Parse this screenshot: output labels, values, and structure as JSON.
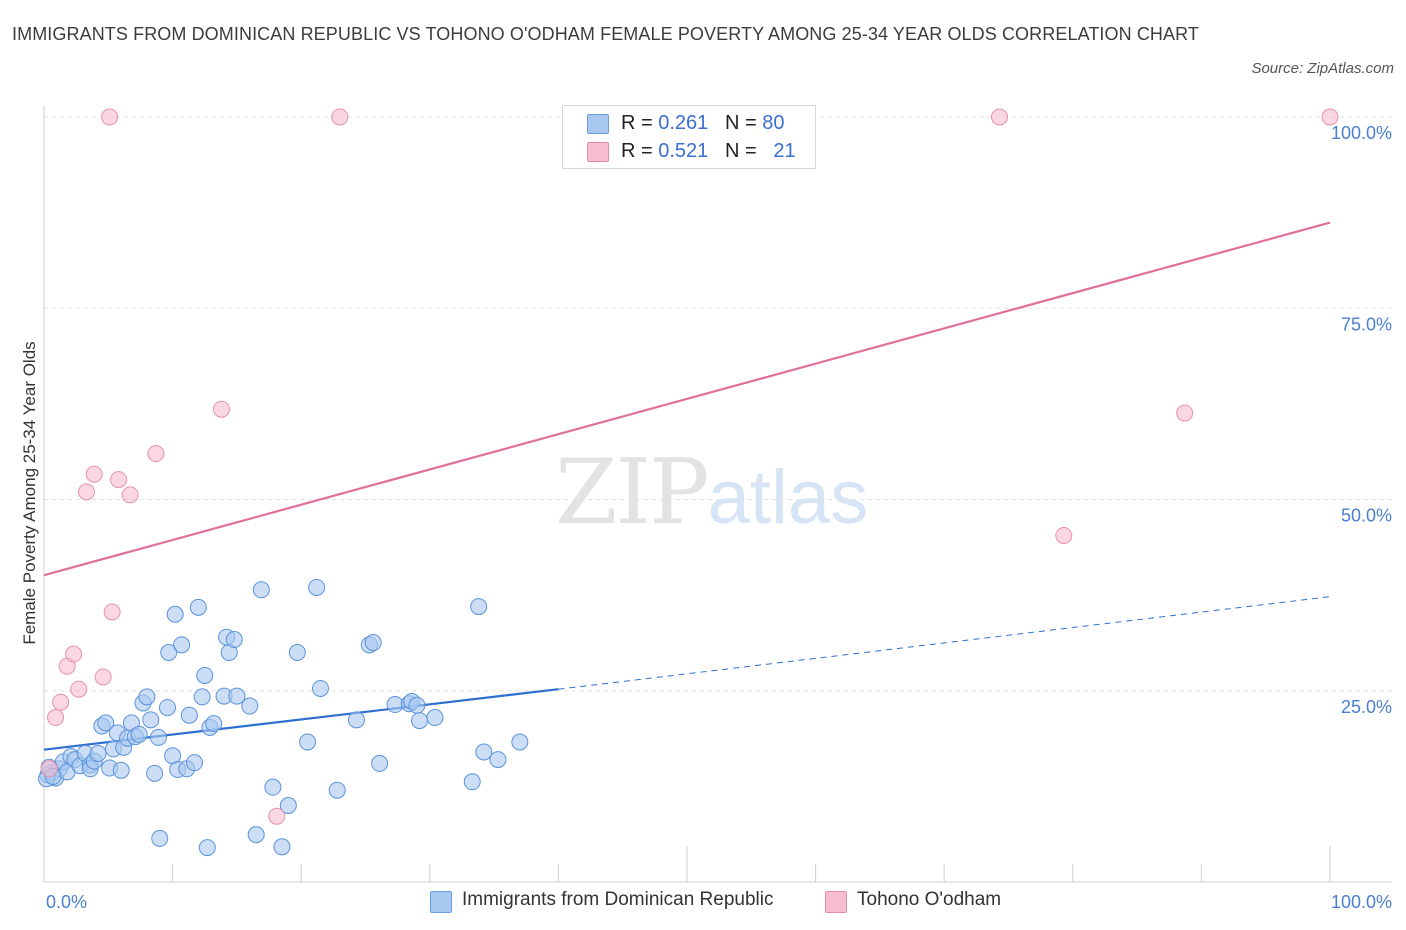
{
  "title": "IMMIGRANTS FROM DOMINICAN REPUBLIC VS TOHONO O'ODHAM FEMALE POVERTY AMONG 25-34 YEAR OLDS CORRELATION CHART",
  "source": "Source: ZipAtlas.com",
  "watermark": {
    "zip": "ZIP",
    "atlas": "atlas"
  },
  "legend": {
    "rows": [
      {
        "r_label": "R = ",
        "r_value": "0.261",
        "n_label": "N = ",
        "n_value": "80",
        "color": "#a8c8f0",
        "border": "#6a9ee0"
      },
      {
        "r_label": "R = ",
        "r_value": "0.521",
        "n_label": "N = ",
        "n_value": "21",
        "color": "#f6bcd0",
        "border": "#e88aa8"
      }
    ]
  },
  "bottom_legend": [
    {
      "label": "Immigrants from Dominican Republic",
      "color": "#a8c8f0",
      "border": "#6a9ee0"
    },
    {
      "label": "Tohono O'odham",
      "color": "#f6bcd0",
      "border": "#e88aa8"
    }
  ],
  "chart_data": {
    "type": "scatter",
    "title": "IMMIGRANTS FROM DOMINICAN REPUBLIC VS TOHONO O'ODHAM FEMALE POVERTY AMONG 25-34 YEAR OLDS CORRELATION CHART",
    "xlabel": "",
    "ylabel": "Female Poverty Among 25-34 Year Olds",
    "xlim": [
      0,
      100
    ],
    "ylim": [
      0,
      100
    ],
    "x_tick_labels": [
      "0.0%",
      "100.0%"
    ],
    "y_tick_labels": [
      "25.0%",
      "50.0%",
      "75.0%",
      "100.0%"
    ],
    "y_ticks": [
      25,
      50,
      75,
      100
    ],
    "grid": true,
    "series": [
      {
        "name": "Immigrants from Dominican Republic",
        "color": "#a8c8f0",
        "stroke": "#5b93dc",
        "trend_color": "#2f6fd0",
        "trend": {
          "x0": 0,
          "y0": 17.3,
          "x1": 40,
          "y1": 25.2,
          "dashed_to_x": 100,
          "dashed_to_y": 37.3
        },
        "points": [
          [
            0.3,
            14.0
          ],
          [
            0.6,
            14.3
          ],
          [
            0.9,
            13.6
          ],
          [
            1.2,
            14.8
          ],
          [
            1.5,
            15.7
          ],
          [
            1.8,
            14.4
          ],
          [
            2.1,
            16.4
          ],
          [
            2.4,
            16.0
          ],
          [
            2.8,
            15.2
          ],
          [
            3.2,
            16.8
          ],
          [
            3.6,
            15.3
          ],
          [
            3.6,
            14.8
          ],
          [
            3.9,
            15.8
          ],
          [
            4.2,
            16.8
          ],
          [
            4.5,
            20.4
          ],
          [
            4.8,
            20.8
          ],
          [
            5.1,
            14.9
          ],
          [
            5.4,
            17.4
          ],
          [
            5.7,
            19.5
          ],
          [
            6.0,
            14.6
          ],
          [
            6.2,
            17.6
          ],
          [
            6.5,
            18.8
          ],
          [
            6.8,
            20.8
          ],
          [
            7.1,
            19.0
          ],
          [
            7.4,
            19.3
          ],
          [
            7.7,
            23.4
          ],
          [
            8.0,
            24.2
          ],
          [
            8.3,
            21.2
          ],
          [
            8.6,
            14.2
          ],
          [
            8.9,
            18.9
          ],
          [
            9.0,
            5.7
          ],
          [
            9.6,
            22.8
          ],
          [
            9.7,
            30.0
          ],
          [
            10.0,
            16.5
          ],
          [
            10.2,
            35.0
          ],
          [
            10.4,
            14.7
          ],
          [
            10.7,
            31.0
          ],
          [
            11.1,
            14.8
          ],
          [
            11.3,
            21.8
          ],
          [
            11.7,
            15.6
          ],
          [
            12.0,
            35.9
          ],
          [
            12.3,
            24.2
          ],
          [
            12.5,
            27.0
          ],
          [
            12.7,
            4.5
          ],
          [
            12.9,
            20.2
          ],
          [
            13.2,
            20.7
          ],
          [
            14.0,
            24.3
          ],
          [
            14.2,
            32.0
          ],
          [
            14.4,
            30.0
          ],
          [
            14.8,
            31.7
          ],
          [
            15.0,
            24.3
          ],
          [
            16.0,
            23.0
          ],
          [
            16.5,
            6.2
          ],
          [
            16.9,
            38.2
          ],
          [
            17.8,
            12.4
          ],
          [
            18.5,
            4.6
          ],
          [
            19.0,
            10.0
          ],
          [
            19.7,
            30.0
          ],
          [
            20.5,
            18.3
          ],
          [
            21.2,
            38.5
          ],
          [
            21.5,
            25.3
          ],
          [
            22.8,
            12.0
          ],
          [
            24.3,
            21.2
          ],
          [
            25.3,
            31.0
          ],
          [
            25.6,
            31.3
          ],
          [
            26.1,
            15.5
          ],
          [
            27.3,
            23.2
          ],
          [
            28.4,
            23.3
          ],
          [
            28.6,
            23.6
          ],
          [
            29.0,
            23.1
          ],
          [
            29.2,
            21.1
          ],
          [
            30.4,
            21.5
          ],
          [
            33.3,
            13.1
          ],
          [
            33.8,
            36.0
          ],
          [
            34.2,
            17.0
          ],
          [
            35.3,
            16.0
          ],
          [
            37.0,
            18.3
          ],
          [
            0.2,
            13.5
          ],
          [
            0.4,
            15.0
          ],
          [
            0.7,
            13.8
          ]
        ]
      },
      {
        "name": "Tohono O'odham",
        "color": "#f6bcd0",
        "stroke": "#e593ae",
        "trend_color": "#e0709a",
        "trend": {
          "x0": 0,
          "y0": 40.1,
          "x1": 100,
          "y1": 86.2
        },
        "points": [
          [
            0.4,
            14.8
          ],
          [
            0.9,
            21.5
          ],
          [
            1.3,
            23.5
          ],
          [
            1.8,
            28.2
          ],
          [
            2.3,
            29.8
          ],
          [
            2.7,
            25.2
          ],
          [
            3.3,
            51.0
          ],
          [
            3.9,
            53.3
          ],
          [
            4.6,
            26.8
          ],
          [
            5.3,
            35.3
          ],
          [
            5.8,
            52.6
          ],
          [
            6.7,
            50.6
          ],
          [
            8.7,
            56.0
          ],
          [
            13.8,
            61.8
          ],
          [
            18.1,
            8.6
          ],
          [
            5.1,
            100.0
          ],
          [
            23.0,
            100.0
          ],
          [
            74.3,
            100.0
          ],
          [
            100.0,
            100.0
          ],
          [
            88.7,
            61.3
          ],
          [
            79.3,
            45.3
          ]
        ]
      }
    ]
  }
}
